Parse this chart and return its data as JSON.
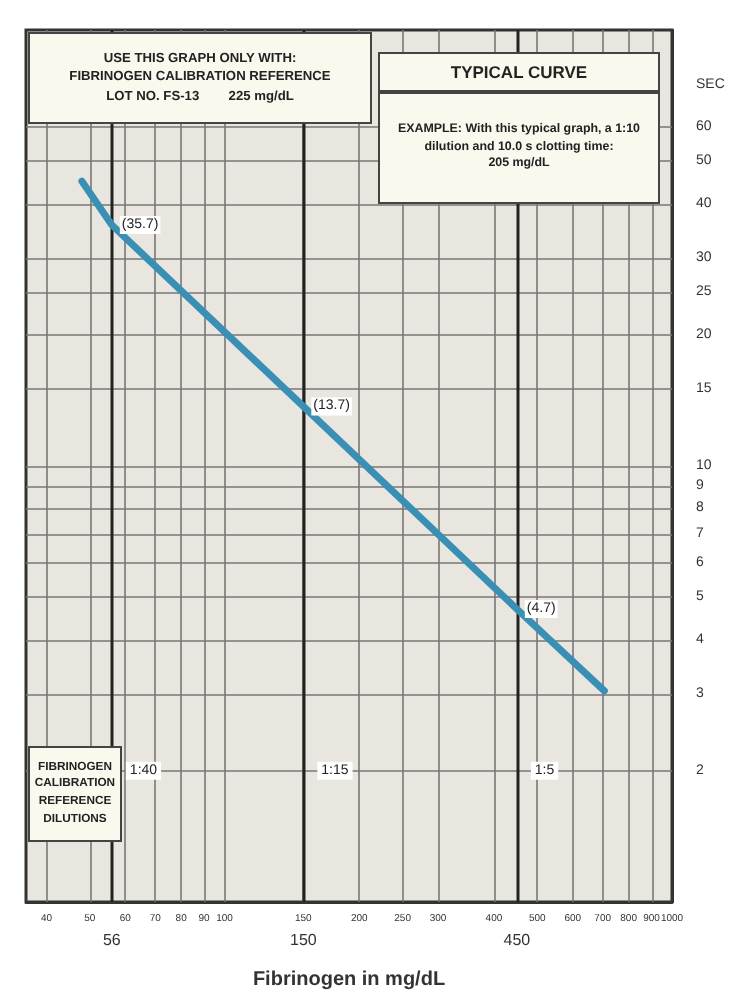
{
  "chart_data": {
    "type": "line",
    "xlabel": "Fibrinogen in mg/dL",
    "ylabel": "SEC",
    "x": [
      48,
      56,
      150,
      450,
      706
    ],
    "series": [
      {
        "color": "#3a8fb5",
        "values": [
          45,
          35.7,
          13.7,
          4.7,
          3.05
        ],
        "value_labels": [
          null,
          "(35.7)",
          "(13.7)",
          "(4.7)",
          null
        ]
      }
    ],
    "log": "xy",
    "xlim": [
      36,
      1000
    ],
    "ylim": [
      1,
      100
    ],
    "xticks": [
      40,
      50,
      60,
      70,
      80,
      90,
      100,
      150,
      200,
      250,
      300,
      400,
      500,
      600,
      700,
      800,
      900,
      1000
    ],
    "yticks": [
      2,
      3,
      4,
      5,
      6,
      7,
      8,
      9,
      10,
      15,
      20,
      25,
      30,
      40,
      50,
      60
    ],
    "ref_lines": [
      {
        "axis": "x",
        "value": 56,
        "label": "56"
      },
      {
        "axis": "x",
        "value": 150,
        "label": "150"
      },
      {
        "axis": "x",
        "value": 450,
        "label": "450"
      }
    ],
    "annotations": [
      "USE THIS GRAPH ONLY WITH:\nFIBRINOGEN CALIBRATION REFERENCE\nLOT NO. FS-13        225 mg/dL",
      "TYPICAL CURVE",
      "EXAMPLE: With this typical graph, a 1:10\ndilution and 10.0 s clotting time:\n205 mg/dL",
      "FIBRINOGEN\nCALIBRATION\nREFERENCE\nDILUTIONS",
      {
        "text": "1:40",
        "x": 56,
        "y": 2
      },
      {
        "text": "1:15",
        "x": 150,
        "y": 2
      },
      {
        "text": "1:5",
        "x": 450,
        "y": 2
      }
    ],
    "grid": true,
    "marker": "none",
    "line_style": "solid"
  }
}
